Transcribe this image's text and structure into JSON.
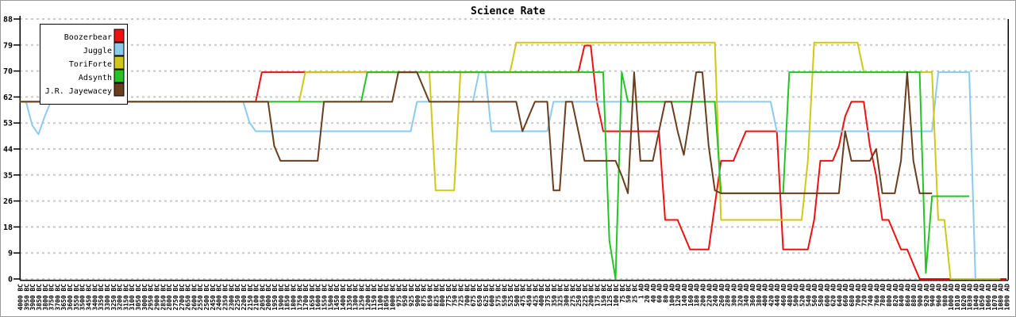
{
  "chart_data": {
    "type": "line",
    "title": "Science Rate",
    "grid": "horizontal-dashed",
    "legend_position": "top-left",
    "y_max": 88,
    "y_tick_labels": [
      "0",
      "9",
      "18",
      "26",
      "35",
      "44",
      "53",
      "62",
      "70",
      "79",
      "88"
    ],
    "x_tick_labels": [
      "4000 BC",
      "3950 BC",
      "3900 BC",
      "3850 BC",
      "3800 BC",
      "3750 BC",
      "3700 BC",
      "3650 BC",
      "3600 BC",
      "3550 BC",
      "3500 BC",
      "3450 BC",
      "3400 BC",
      "3350 BC",
      "3300 BC",
      "3250 BC",
      "3200 BC",
      "3150 BC",
      "3100 BC",
      "3050 BC",
      "3000 BC",
      "2950 BC",
      "2900 BC",
      "2850 BC",
      "2800 BC",
      "2750 BC",
      "2700 BC",
      "2650 BC",
      "2600 BC",
      "2550 BC",
      "2500 BC",
      "2450 BC",
      "2400 BC",
      "2350 BC",
      "2300 BC",
      "2250 BC",
      "2200 BC",
      "2150 BC",
      "2100 BC",
      "2050 BC",
      "2000 BC",
      "1950 BC",
      "1900 BC",
      "1850 BC",
      "1800 BC",
      "1750 BC",
      "1700 BC",
      "1650 BC",
      "1600 BC",
      "1550 BC",
      "1500 BC",
      "1450 BC",
      "1400 BC",
      "1350 BC",
      "1300 BC",
      "1250 BC",
      "1200 BC",
      "1150 BC",
      "1100 BC",
      "1050 BC",
      "1000 BC",
      "975 BC",
      "950 BC",
      "925 BC",
      "900 BC",
      "875 BC",
      "850 BC",
      "825 BC",
      "800 BC",
      "775 BC",
      "750 BC",
      "725 BC",
      "700 BC",
      "675 BC",
      "650 BC",
      "625 BC",
      "600 BC",
      "575 BC",
      "550 BC",
      "525 BC",
      "500 BC",
      "475 BC",
      "450 BC",
      "425 BC",
      "400 BC",
      "375 BC",
      "350 BC",
      "325 BC",
      "300 BC",
      "275 BC",
      "250 BC",
      "225 BC",
      "200 BC",
      "175 BC",
      "150 BC",
      "125 BC",
      "100 BC",
      "75 BC",
      "50 BC",
      "25 BC",
      "1 AD",
      "20 AD",
      "40 AD",
      "60 AD",
      "80 AD",
      "100 AD",
      "120 AD",
      "140 AD",
      "160 AD",
      "180 AD",
      "200 AD",
      "220 AD",
      "240 AD",
      "260 AD",
      "280 AD",
      "300 AD",
      "320 AD",
      "340 AD",
      "360 AD",
      "380 AD",
      "400 AD",
      "420 AD",
      "440 AD",
      "460 AD",
      "480 AD",
      "500 AD",
      "520 AD",
      "540 AD",
      "560 AD",
      "580 AD",
      "600 AD",
      "620 AD",
      "640 AD",
      "660 AD",
      "680 AD",
      "700 AD",
      "720 AD",
      "740 AD",
      "760 AD",
      "780 AD",
      "800 AD",
      "820 AD",
      "840 AD",
      "860 AD",
      "880 AD",
      "900 AD",
      "920 AD",
      "940 AD",
      "960 AD",
      "980 AD",
      "1000 AD",
      "1010 AD",
      "1020 AD",
      "1030 AD",
      "1040 AD",
      "1050 AD",
      "1060 AD",
      "1070 AD",
      "1080 AD",
      "1090 AD"
    ],
    "series": [
      {
        "name": "Boozerbear",
        "color": "#ee1111",
        "values": [
          60,
          60,
          60,
          60,
          60,
          60,
          60,
          60,
          60,
          60,
          60,
          60,
          60,
          60,
          60,
          60,
          60,
          60,
          60,
          60,
          60,
          60,
          60,
          60,
          60,
          60,
          60,
          60,
          60,
          60,
          60,
          60,
          60,
          60,
          60,
          60,
          60,
          60,
          60,
          70,
          70,
          70,
          70,
          70,
          70,
          70,
          70,
          70,
          70,
          70,
          70,
          70,
          70,
          70,
          70,
          70,
          70,
          70,
          70,
          70,
          70,
          70,
          70,
          70,
          70,
          70,
          70,
          70,
          70,
          70,
          70,
          70,
          70,
          70,
          70,
          70,
          70,
          70,
          70,
          70,
          70,
          70,
          70,
          70,
          70,
          70,
          70,
          70,
          70,
          70,
          70,
          79,
          79,
          60,
          50,
          50,
          50,
          50,
          50,
          50,
          50,
          50,
          50,
          50,
          20,
          20,
          20,
          15,
          10,
          10,
          10,
          10,
          25,
          40,
          40,
          40,
          45,
          50,
          50,
          50,
          50,
          50,
          50,
          10,
          10,
          10,
          10,
          10,
          20,
          40,
          40,
          40,
          45,
          55,
          60,
          60,
          60,
          45,
          35,
          20,
          20,
          15,
          10,
          10,
          5,
          0,
          0,
          0,
          0,
          0,
          0,
          0,
          0,
          0,
          0,
          0,
          0,
          0,
          0,
          0
        ]
      },
      {
        "name": "Juggle",
        "color": "#8ccaee",
        "values": [
          60,
          60,
          52,
          49,
          55,
          60,
          60,
          60,
          60,
          60,
          60,
          60,
          60,
          60,
          60,
          60,
          60,
          60,
          60,
          60,
          60,
          60,
          60,
          60,
          60,
          60,
          60,
          60,
          60,
          60,
          60,
          60,
          60,
          60,
          60,
          60,
          60,
          53,
          50,
          50,
          50,
          50,
          50,
          50,
          50,
          50,
          50,
          50,
          50,
          50,
          50,
          50,
          50,
          50,
          50,
          50,
          50,
          50,
          50,
          50,
          50,
          50,
          50,
          50,
          60,
          60,
          60,
          60,
          60,
          60,
          60,
          60,
          60,
          60,
          70,
          70,
          50,
          50,
          50,
          50,
          50,
          50,
          50,
          50,
          50,
          50,
          60,
          60,
          60,
          60,
          60,
          60,
          60,
          60,
          60,
          60,
          60,
          60,
          60,
          60,
          60,
          60,
          60,
          60,
          60,
          60,
          60,
          60,
          60,
          60,
          60,
          60,
          60,
          60,
          60,
          60,
          60,
          60,
          60,
          60,
          60,
          60,
          50,
          50,
          50,
          50,
          50,
          50,
          50,
          50,
          50,
          50,
          50,
          50,
          50,
          50,
          50,
          50,
          50,
          50,
          50,
          50,
          50,
          50,
          50,
          50,
          50,
          50,
          70,
          70,
          70,
          70,
          70,
          70,
          0,
          0,
          0,
          null,
          null,
          null
        ]
      },
      {
        "name": "ToriForte",
        "color": "#d0c818",
        "values": [
          60,
          60,
          60,
          60,
          60,
          60,
          60,
          60,
          60,
          60,
          60,
          60,
          60,
          60,
          60,
          60,
          60,
          60,
          60,
          60,
          60,
          60,
          60,
          60,
          60,
          60,
          60,
          60,
          60,
          60,
          60,
          60,
          60,
          60,
          60,
          60,
          60,
          60,
          60,
          60,
          60,
          60,
          60,
          60,
          60,
          60,
          70,
          70,
          70,
          70,
          70,
          70,
          70,
          70,
          70,
          70,
          70,
          70,
          70,
          70,
          70,
          70,
          70,
          70,
          70,
          70,
          70,
          30,
          30,
          30,
          30,
          70,
          70,
          70,
          70,
          70,
          70,
          70,
          70,
          70,
          80,
          80,
          80,
          80,
          80,
          80,
          80,
          80,
          80,
          80,
          80,
          80,
          80,
          80,
          80,
          80,
          80,
          80,
          80,
          80,
          80,
          80,
          80,
          80,
          80,
          80,
          80,
          80,
          80,
          80,
          80,
          80,
          80,
          20,
          20,
          20,
          20,
          20,
          20,
          20,
          20,
          20,
          20,
          20,
          20,
          20,
          20,
          40,
          80,
          80,
          80,
          80,
          80,
          80,
          80,
          80,
          70,
          70,
          70,
          70,
          70,
          70,
          70,
          70,
          70,
          70,
          70,
          70,
          20,
          20,
          0,
          0,
          0,
          0,
          0,
          0,
          0,
          0,
          0,
          null
        ]
      },
      {
        "name": "Adsynth",
        "color": "#25c425",
        "values": [
          60,
          60,
          60,
          60,
          60,
          60,
          60,
          60,
          60,
          60,
          60,
          60,
          60,
          60,
          60,
          60,
          60,
          60,
          60,
          60,
          60,
          60,
          60,
          60,
          60,
          60,
          60,
          60,
          60,
          60,
          60,
          60,
          60,
          60,
          60,
          60,
          60,
          60,
          60,
          60,
          60,
          60,
          60,
          60,
          60,
          60,
          60,
          60,
          60,
          60,
          60,
          60,
          60,
          60,
          60,
          60,
          70,
          70,
          70,
          70,
          70,
          70,
          70,
          70,
          70,
          70,
          70,
          70,
          70,
          70,
          70,
          70,
          70,
          70,
          70,
          70,
          70,
          70,
          70,
          70,
          70,
          70,
          70,
          70,
          70,
          70,
          70,
          70,
          70,
          70,
          70,
          70,
          70,
          70,
          70,
          13,
          0,
          70,
          60,
          60,
          60,
          60,
          60,
          60,
          60,
          60,
          60,
          60,
          60,
          60,
          60,
          60,
          60,
          29,
          29,
          29,
          29,
          29,
          29,
          29,
          29,
          29,
          29,
          29,
          70,
          70,
          70,
          70,
          70,
          70,
          70,
          70,
          70,
          70,
          70,
          70,
          70,
          70,
          70,
          70,
          70,
          70,
          70,
          70,
          70,
          70,
          2,
          28,
          28,
          28,
          28,
          28,
          28,
          28,
          null,
          null,
          null,
          null,
          null,
          null
        ]
      },
      {
        "name": "J.R. Jayewacey",
        "color": "#6a3d1e",
        "values": [
          60,
          60,
          60,
          60,
          60,
          60,
          60,
          60,
          60,
          60,
          60,
          60,
          60,
          60,
          60,
          60,
          60,
          60,
          60,
          60,
          60,
          60,
          60,
          60,
          60,
          60,
          60,
          60,
          60,
          60,
          60,
          60,
          60,
          60,
          60,
          60,
          60,
          60,
          60,
          60,
          60,
          45,
          40,
          40,
          40,
          40,
          40,
          40,
          40,
          60,
          60,
          60,
          60,
          60,
          60,
          60,
          60,
          60,
          60,
          60,
          60,
          70,
          70,
          70,
          70,
          65,
          60,
          60,
          60,
          60,
          60,
          60,
          60,
          60,
          60,
          60,
          60,
          60,
          60,
          60,
          60,
          50,
          55,
          60,
          60,
          60,
          30,
          30,
          60,
          60,
          50,
          40,
          40,
          40,
          40,
          40,
          40,
          35,
          29,
          70,
          40,
          40,
          40,
          50,
          60,
          60,
          50,
          42,
          55,
          70,
          70,
          45,
          30,
          29,
          29,
          29,
          29,
          29,
          29,
          29,
          29,
          29,
          29,
          29,
          29,
          29,
          29,
          29,
          29,
          29,
          29,
          29,
          29,
          50,
          40,
          40,
          40,
          40,
          44,
          29,
          29,
          29,
          40,
          70,
          40,
          29,
          29,
          29,
          null,
          null,
          null,
          null,
          null,
          null,
          null,
          null,
          null,
          null,
          null,
          null
        ]
      }
    ]
  }
}
